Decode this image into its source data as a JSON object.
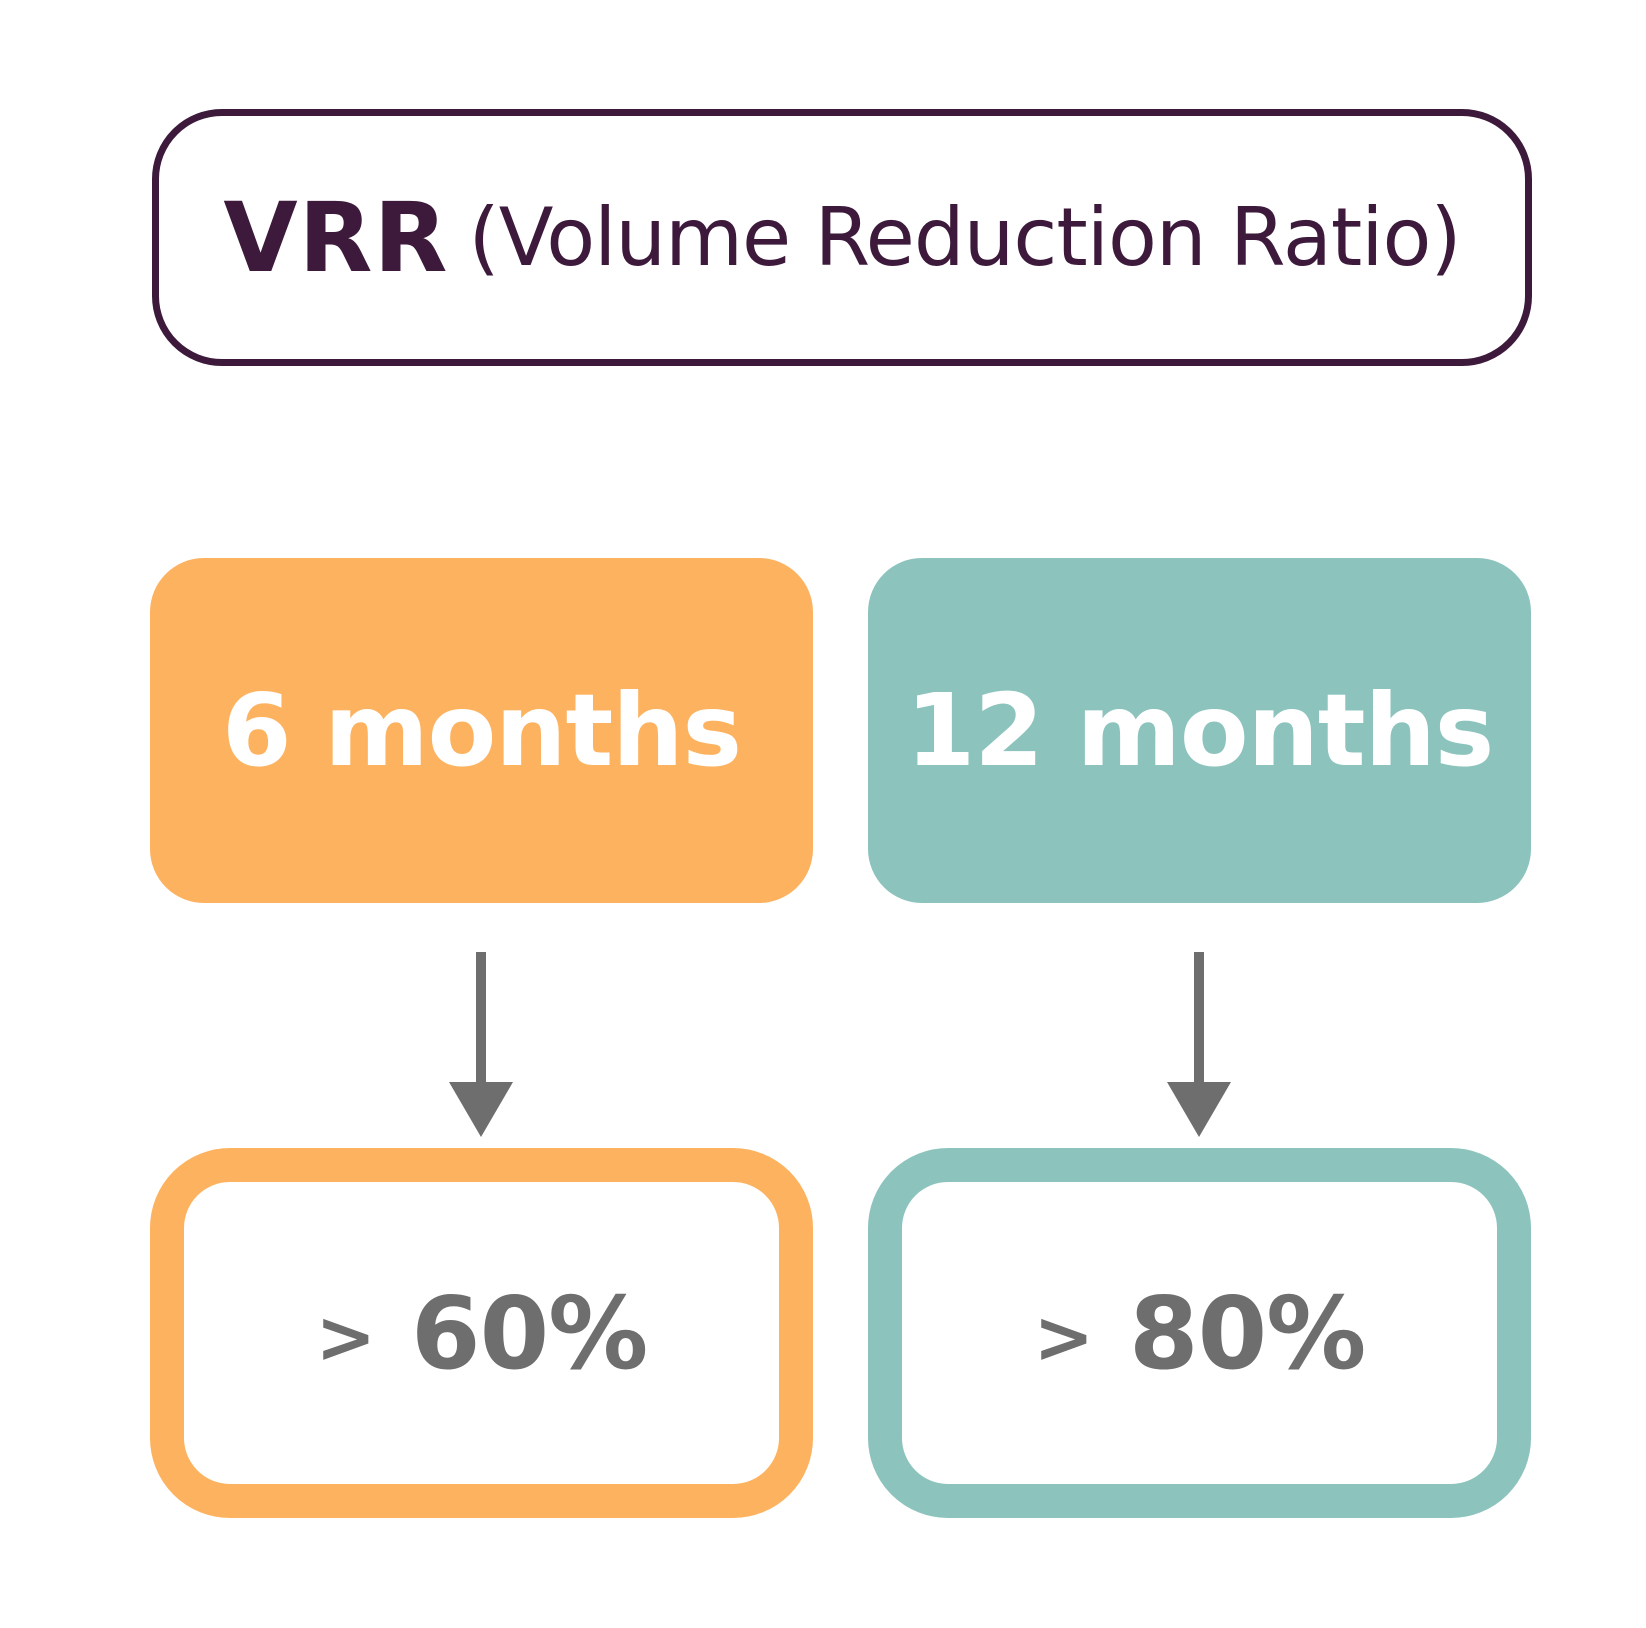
{
  "title": {
    "abbreviation": "VRR",
    "full_name": "(Volume Reduction Ratio)",
    "color": "#3d1a3b"
  },
  "periods": [
    {
      "label": "6 months",
      "color": "#fdb25f"
    },
    {
      "label": "12 months",
      "color": "#8cc4bd"
    }
  ],
  "results": [
    {
      "prefix": ">",
      "value": "60%",
      "color": "#fdb25f"
    },
    {
      "prefix": ">",
      "value": "80%",
      "color": "#8cc4bd"
    }
  ],
  "arrow_color": "#6e6e6e"
}
